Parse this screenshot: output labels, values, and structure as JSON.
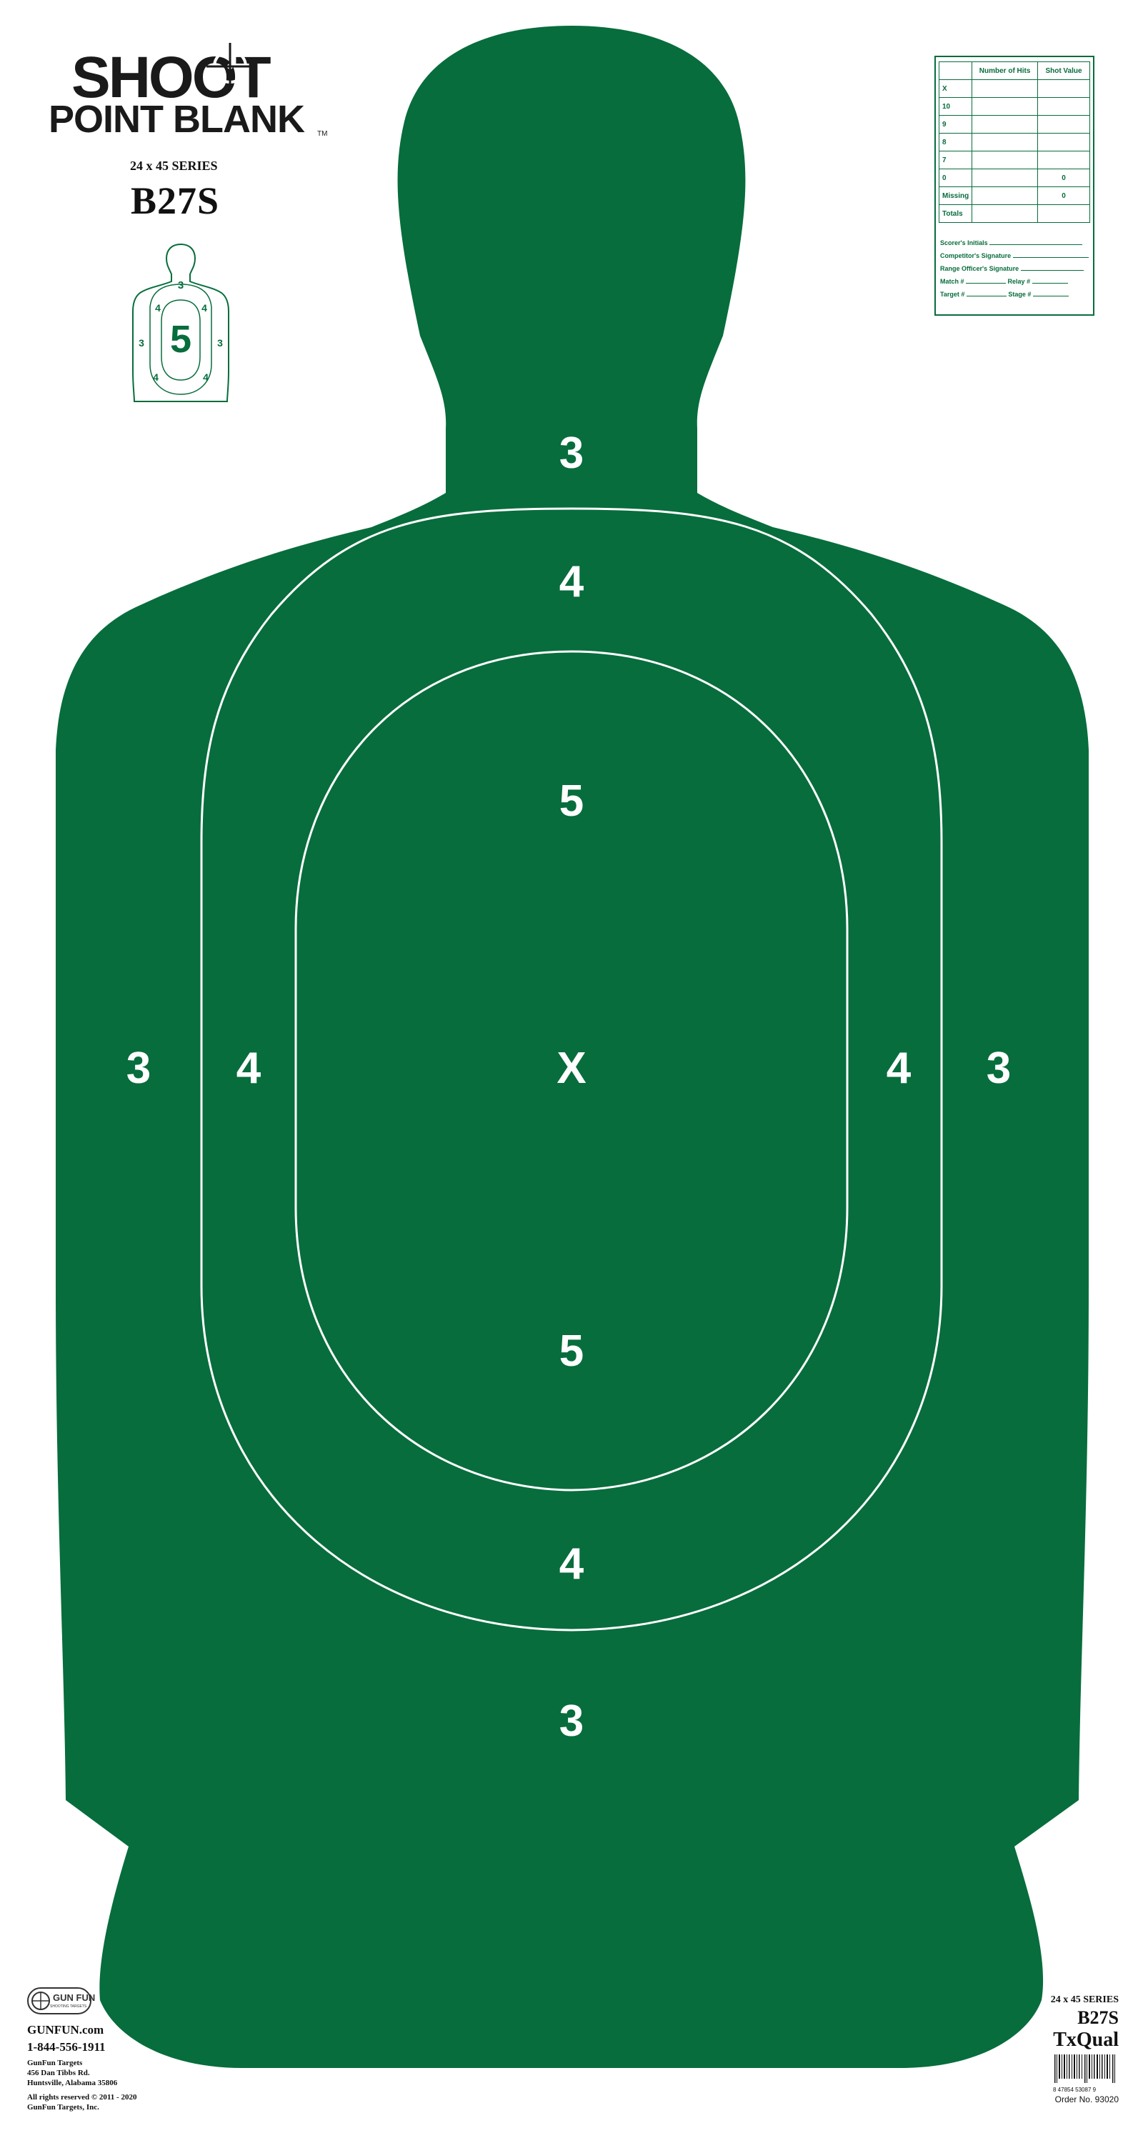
{
  "brand": {
    "line1": "SHOOT",
    "line2": "POINT BLANK",
    "tm": "TM"
  },
  "header": {
    "series": "24 x 45 SERIES",
    "model": "B27S"
  },
  "target": {
    "fill_color": "#076d3c",
    "line_color": "#ffffff",
    "labels": {
      "head_3": "3",
      "upper_4": "4",
      "upper_5": "5",
      "center_x": "X",
      "left_3": "3",
      "left_4": "4",
      "right_4": "4",
      "right_3": "3",
      "lower_5": "5",
      "lower_4": "4",
      "bottom_3": "3"
    }
  },
  "mini_target": {
    "top_3": "3",
    "left_4_top": "4",
    "right_4_top": "4",
    "center_5": "5",
    "left_3": "3",
    "right_3": "3",
    "left_4_bottom": "4",
    "right_4_bottom": "4"
  },
  "score_card": {
    "headers": [
      "",
      "Number of Hits",
      "Shot Value"
    ],
    "rows": [
      {
        "label": "X",
        "hits": "",
        "value": ""
      },
      {
        "label": "10",
        "hits": "",
        "value": ""
      },
      {
        "label": "9",
        "hits": "",
        "value": ""
      },
      {
        "label": "8",
        "hits": "",
        "value": ""
      },
      {
        "label": "7",
        "hits": "",
        "value": ""
      },
      {
        "label": "0",
        "hits": "",
        "value": "0"
      },
      {
        "label": "Missing",
        "hits": "",
        "value": "0"
      },
      {
        "label": "Totals",
        "hits": "",
        "value": ""
      }
    ],
    "scorer": "Scorer's Initials",
    "competitor": "Competitor's Signature",
    "range_officer": "Range Officer's Signature",
    "match": "Match #",
    "relay": "Relay #",
    "target": "Target #",
    "stage": "Stage #"
  },
  "footer_left": {
    "logo_text": "GUN FUN",
    "logo_sub": "SHOOTING TARGETS",
    "website": "GUNFUN.com",
    "phone": "1-844-556-1911",
    "company": "GunFun Targets",
    "street": "456 Dan Tibbs Rd.",
    "city": "Huntsville, Alabama 35806",
    "rights": "All rights reserved © 2011 - 2020",
    "owner": "GunFun Targets, Inc."
  },
  "footer_right": {
    "series": "24 x 45 SERIES",
    "model": "B27S",
    "variant": "TxQual",
    "barcode_digits": "8  47854  53087  9",
    "order": "Order No. 93020"
  }
}
